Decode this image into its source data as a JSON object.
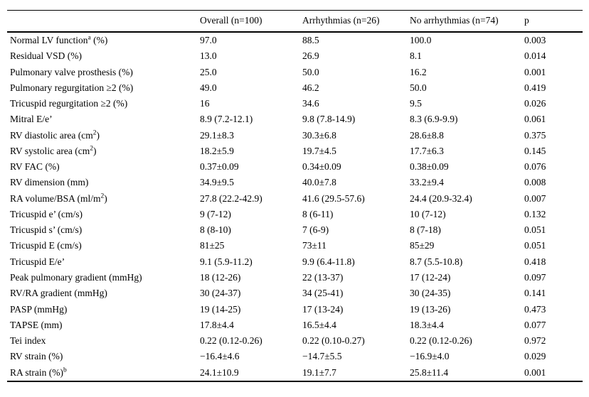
{
  "table": {
    "columns": [
      "",
      "Overall (n=100)",
      "Arrhythmias (n=26)",
      "No arrhythmias (n=74)",
      "p"
    ],
    "rows": [
      {
        "label": [
          {
            "t": "Normal LV function"
          },
          {
            "t": "a",
            "sup": true
          },
          {
            "t": " (%)"
          }
        ],
        "values": [
          "97.0",
          "88.5",
          "100.0",
          "0.003"
        ]
      },
      {
        "label": [
          {
            "t": "Residual VSD (%)"
          }
        ],
        "values": [
          "13.0",
          "26.9",
          "8.1",
          "0.014"
        ]
      },
      {
        "label": [
          {
            "t": "Pulmonary valve prosthesis (%)"
          }
        ],
        "values": [
          "25.0",
          "50.0",
          "16.2",
          "0.001"
        ]
      },
      {
        "label": [
          {
            "t": "Pulmonary regurgitation ≥2 (%)"
          }
        ],
        "values": [
          "49.0",
          "46.2",
          "50.0",
          "0.419"
        ]
      },
      {
        "label": [
          {
            "t": "Tricuspid regurgitation ≥2 (%)"
          }
        ],
        "values": [
          "16",
          "34.6",
          "9.5",
          "0.026"
        ]
      },
      {
        "label": [
          {
            "t": "Mitral E/e’"
          }
        ],
        "values": [
          "8.9 (7.2-12.1)",
          "9.8 (7.8-14.9)",
          "8.3 (6.9-9.9)",
          "0.061"
        ]
      },
      {
        "label": [
          {
            "t": "RV diastolic area (cm"
          },
          {
            "t": "2",
            "sup": true
          },
          {
            "t": ")"
          }
        ],
        "values": [
          "29.1±8.3",
          "30.3±6.8",
          "28.6±8.8",
          "0.375"
        ]
      },
      {
        "label": [
          {
            "t": "RV systolic area (cm"
          },
          {
            "t": "2",
            "sup": true
          },
          {
            "t": ")"
          }
        ],
        "values": [
          "18.2±5.9",
          "19.7±4.5",
          "17.7±6.3",
          "0.145"
        ]
      },
      {
        "label": [
          {
            "t": "RV FAC (%)"
          }
        ],
        "values": [
          "0.37±0.09",
          "0.34±0.09",
          "0.38±0.09",
          "0.076"
        ]
      },
      {
        "label": [
          {
            "t": "RV dimension (mm)"
          }
        ],
        "values": [
          "34.9±9.5",
          "40.0±7.8",
          "33.2±9.4",
          "0.008"
        ]
      },
      {
        "label": [
          {
            "t": "RA volume/BSA (ml/m"
          },
          {
            "t": "2",
            "sup": true
          },
          {
            "t": ")"
          }
        ],
        "values": [
          "27.8 (22.2-42.9)",
          "41.6 (29.5-57.6)",
          "24.4 (20.9-32.4)",
          "0.007"
        ]
      },
      {
        "label": [
          {
            "t": "Tricuspid e’ (cm/s)"
          }
        ],
        "values": [
          "9 (7-12)",
          "8 (6-11)",
          "10 (7-12)",
          "0.132"
        ]
      },
      {
        "label": [
          {
            "t": "Tricuspid s’ (cm/s)"
          }
        ],
        "values": [
          "8 (8-10)",
          "7 (6-9)",
          "8 (7-18)",
          "0.051"
        ]
      },
      {
        "label": [
          {
            "t": "Tricuspid E (cm/s)"
          }
        ],
        "values": [
          "81±25",
          "73±11",
          "85±29",
          "0.051"
        ]
      },
      {
        "label": [
          {
            "t": "Tricuspid E/e’"
          }
        ],
        "values": [
          "9.1 (5.9-11.2)",
          "9.9 (6.4-11.8)",
          "8.7 (5.5-10.8)",
          "0.418"
        ]
      },
      {
        "label": [
          {
            "t": "Peak pulmonary gradient (mmHg)"
          }
        ],
        "values": [
          "18 (12-26)",
          "22 (13-37)",
          "17 (12-24)",
          "0.097"
        ]
      },
      {
        "label": [
          {
            "t": "RV/RA gradient (mmHg)"
          }
        ],
        "values": [
          "30 (24-37)",
          "34 (25-41)",
          "30 (24-35)",
          "0.141"
        ]
      },
      {
        "label": [
          {
            "t": "PASP (mmHg)"
          }
        ],
        "values": [
          "19 (14-25)",
          "17 (13-24)",
          "19 (13-26)",
          "0.473"
        ]
      },
      {
        "label": [
          {
            "t": "TAPSE (mm)"
          }
        ],
        "values": [
          "17.8±4.4",
          "16.5±4.4",
          "18.3±4.4",
          "0.077"
        ]
      },
      {
        "label": [
          {
            "t": "Tei index"
          }
        ],
        "values": [
          "0.22 (0.12-0.26)",
          "0.22 (0.10-0.27)",
          "0.22 (0.12-0.26)",
          "0.972"
        ]
      },
      {
        "label": [
          {
            "t": "RV strain (%)"
          }
        ],
        "values": [
          "−16.4±4.6",
          "−14.7±5.5",
          "−16.9±4.0",
          "0.029"
        ]
      },
      {
        "label": [
          {
            "t": "RA strain (%)"
          },
          {
            "t": "b",
            "sup": true
          }
        ],
        "values": [
          "24.1±10.9",
          "19.1±7.7",
          "25.8±11.4",
          "0.001"
        ]
      }
    ]
  },
  "chart_data": {
    "type": "table",
    "columns": [
      "",
      "Overall (n=100)",
      "Arrhythmias (n=26)",
      "No arrhythmias (n=74)",
      "p"
    ]
  }
}
